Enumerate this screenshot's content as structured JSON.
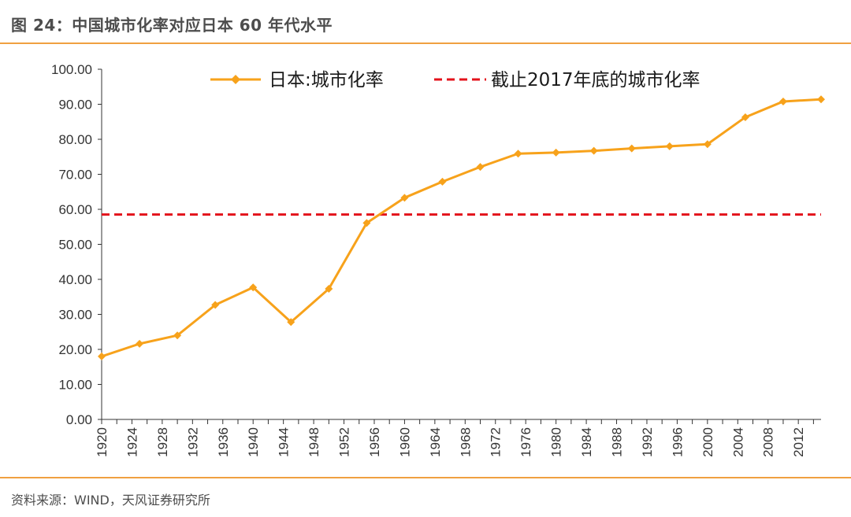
{
  "figure": {
    "title": "图 24：中国城市化率对应日本 60 年代水平",
    "source": "资料来源：WIND，天风证券研究所"
  },
  "colors": {
    "accent": "#f0a040",
    "series_line": "#f7a21b",
    "reference_line": "#e3121b",
    "axis": "#333333"
  },
  "chart_data": {
    "type": "line",
    "title": "",
    "xlabel": "",
    "ylabel": "",
    "ylim": [
      0,
      100
    ],
    "yticks": [
      "0.00",
      "10.00",
      "20.00",
      "30.00",
      "40.00",
      "50.00",
      "60.00",
      "70.00",
      "80.00",
      "90.00",
      "100.00"
    ],
    "xlim": [
      1920,
      2015
    ],
    "xticks": [
      "1920",
      "1924",
      "1928",
      "1932",
      "1936",
      "1940",
      "1944",
      "1948",
      "1952",
      "1956",
      "1960",
      "1964",
      "1968",
      "1972",
      "1976",
      "1980",
      "1984",
      "1988",
      "1992",
      "1996",
      "2000",
      "2004",
      "2008",
      "2012"
    ],
    "grid": false,
    "legend_position": "top",
    "series": [
      {
        "name": "日本:城市化率",
        "style": "line-marker",
        "x": [
          1920,
          1925,
          1930,
          1935,
          1940,
          1945,
          1950,
          1955,
          1960,
          1965,
          1970,
          1975,
          1980,
          1985,
          1990,
          1995,
          2000,
          2005,
          2010,
          2015
        ],
        "values": [
          18.0,
          21.6,
          24.0,
          32.7,
          37.7,
          27.8,
          37.3,
          56.1,
          63.3,
          67.9,
          72.1,
          75.9,
          76.2,
          76.7,
          77.4,
          78.0,
          78.6,
          86.3,
          90.8,
          91.4
        ]
      },
      {
        "name": "截止2017年底的城市化率",
        "style": "dashed-reference",
        "value": 58.5
      }
    ]
  }
}
